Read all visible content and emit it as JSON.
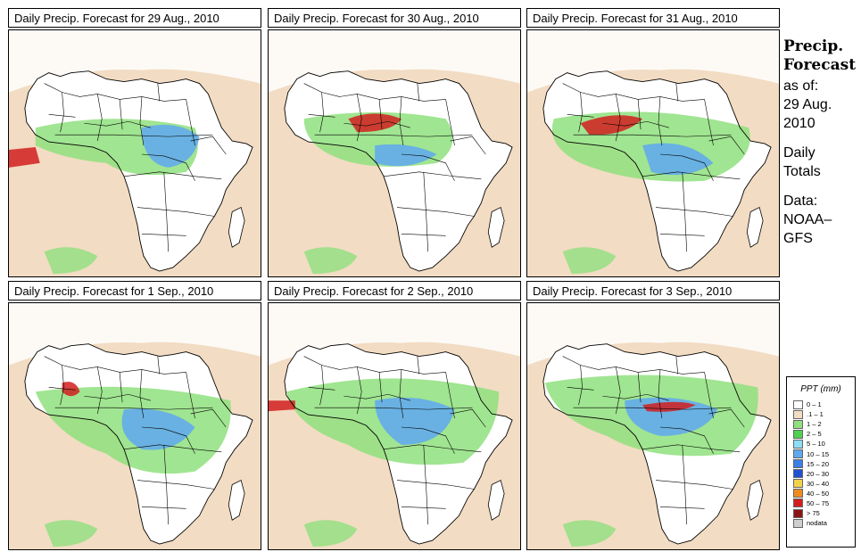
{
  "panels": [
    {
      "title": "Daily Precip. Forecast for  29 Aug., 2010"
    },
    {
      "title": "Daily Precip. Forecast for  30 Aug., 2010"
    },
    {
      "title": "Daily Precip. Forecast for  31 Aug., 2010"
    },
    {
      "title": "Daily Precip. Forecast for  1 Sep., 2010"
    },
    {
      "title": "Daily Precip. Forecast for  2 Sep., 2010"
    },
    {
      "title": "Daily Precip. Forecast for  3 Sep., 2010"
    }
  ],
  "sidebar": {
    "heading1": "Precip.",
    "heading2": "Forecast",
    "asof": "as of:",
    "date1": "29 Aug.",
    "date2": "2010",
    "daily1": "Daily",
    "daily2": "Totals",
    "data1": "Data:",
    "data2": "NOAA–",
    "data3": "GFS"
  },
  "legend": {
    "title": "PPT (mm)",
    "items": [
      {
        "label": "0 – 1",
        "color": "#ffffff"
      },
      {
        "label": ".1 – 1",
        "color": "#f2dcc3"
      },
      {
        "label": "1 – 2",
        "color": "#8fe07e"
      },
      {
        "label": "2 – 5",
        "color": "#4fd24f"
      },
      {
        "label": "5 – 10",
        "color": "#8fdcf5"
      },
      {
        "label": "10 – 15",
        "color": "#5fa8f0"
      },
      {
        "label": "15 – 20",
        "color": "#3c7fe6"
      },
      {
        "label": "20 – 30",
        "color": "#1f50d2"
      },
      {
        "label": "30 – 40",
        "color": "#f2d24b"
      },
      {
        "label": "40 – 50",
        "color": "#f08c1e"
      },
      {
        "label": "50 – 75",
        "color": "#d21e1e"
      },
      {
        "label": "> 75",
        "color": "#8c1414"
      },
      {
        "label": "nodata",
        "color": "#cfcfcf"
      }
    ]
  }
}
